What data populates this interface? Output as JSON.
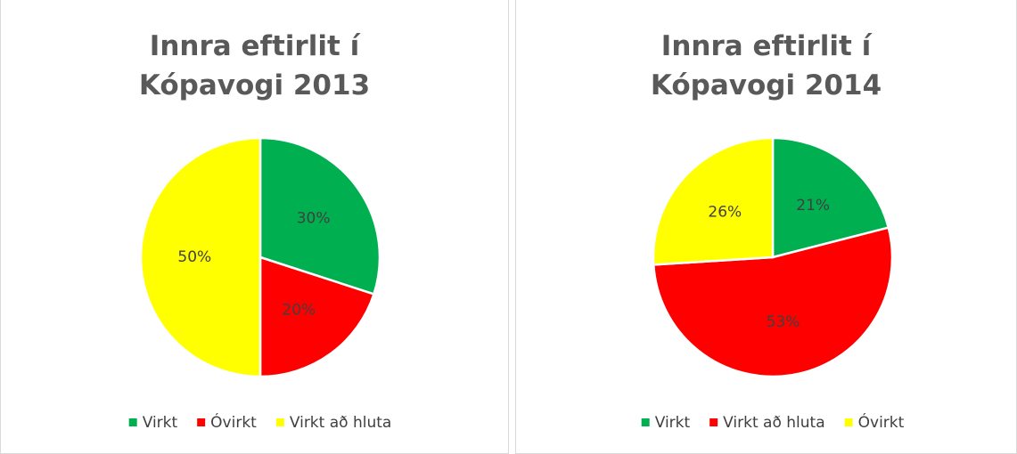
{
  "chart_data": [
    {
      "type": "pie",
      "title": "Innra eftirlit í Kópavogi 2013",
      "categories": [
        "Virkt",
        "Óvirkt",
        "Virkt að hluta"
      ],
      "values": [
        30,
        20,
        50
      ],
      "value_labels": [
        "30%",
        "20%",
        "50%"
      ],
      "colors": [
        "#00b050",
        "#ff0000",
        "#ffff00"
      ],
      "legend": "bottom"
    },
    {
      "type": "pie",
      "title": "Innra eftirlit í Kópavogi 2014",
      "categories": [
        "Virkt",
        "Virkt að hluta",
        "Óvirkt"
      ],
      "values": [
        21,
        53,
        26
      ],
      "value_labels": [
        "21%",
        "53%",
        "26%"
      ],
      "colors": [
        "#00b050",
        "#ff0000",
        "#ffff00"
      ],
      "legend": "bottom"
    }
  ]
}
